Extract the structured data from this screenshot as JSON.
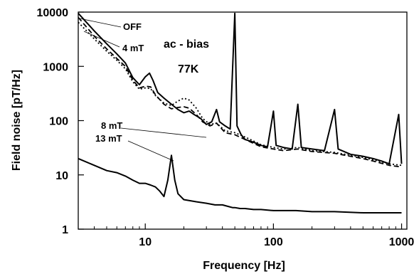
{
  "chart_data": {
    "type": "line",
    "xlabel": "Frequency [Hz]",
    "ylabel": "Field noise [pT/Hz]",
    "x_scale": "log",
    "y_scale": "log",
    "xlim": [
      3,
      1100
    ],
    "ylim": [
      1,
      10000
    ],
    "x_ticks": [
      10,
      100,
      1000
    ],
    "x_tick_labels": [
      "10",
      "100",
      "1000"
    ],
    "y_ticks": [
      1,
      10,
      100,
      1000,
      10000
    ],
    "y_tick_labels": [
      "1",
      "10",
      "100",
      "1000",
      "10000"
    ],
    "grid": false,
    "annotations": {
      "bias": "ac - bias",
      "temperature": "77K"
    },
    "series": [
      {
        "name": "OFF",
        "style": "solid",
        "points": [
          [
            3,
            9500
          ],
          [
            4,
            4500
          ],
          [
            5,
            2600
          ],
          [
            6,
            1700
          ],
          [
            7,
            1150
          ],
          [
            8,
            620
          ],
          [
            9,
            460
          ],
          [
            10,
            640
          ],
          [
            10.8,
            750
          ],
          [
            11.5,
            550
          ],
          [
            12.5,
            330
          ],
          [
            14,
            260
          ],
          [
            16,
            200
          ],
          [
            18,
            160
          ],
          [
            20,
            140
          ],
          [
            22,
            150
          ],
          [
            24,
            130
          ],
          [
            27,
            110
          ],
          [
            30,
            85
          ],
          [
            33,
            95
          ],
          [
            36,
            160
          ],
          [
            38,
            95
          ],
          [
            42,
            80
          ],
          [
            46,
            70
          ],
          [
            50,
            9500
          ],
          [
            52,
            80
          ],
          [
            56,
            55
          ],
          [
            60,
            45
          ],
          [
            70,
            40
          ],
          [
            80,
            35
          ],
          [
            90,
            33
          ],
          [
            100,
            150
          ],
          [
            105,
            35
          ],
          [
            120,
            32
          ],
          [
            140,
            30
          ],
          [
            155,
            200
          ],
          [
            165,
            32
          ],
          [
            200,
            30
          ],
          [
            250,
            28
          ],
          [
            300,
            160
          ],
          [
            320,
            30
          ],
          [
            400,
            24
          ],
          [
            500,
            22
          ],
          [
            600,
            20
          ],
          [
            700,
            18
          ],
          [
            800,
            16
          ],
          [
            950,
            130
          ],
          [
            1000,
            16
          ]
        ]
      },
      {
        "name": "4 mT",
        "style": "dashed",
        "points": [
          [
            3,
            8000
          ],
          [
            4,
            3600
          ],
          [
            5,
            2100
          ],
          [
            6,
            1400
          ],
          [
            7,
            1000
          ],
          [
            8,
            560
          ],
          [
            9,
            400
          ],
          [
            10,
            430
          ],
          [
            11,
            420
          ],
          [
            12,
            300
          ],
          [
            14,
            200
          ],
          [
            16,
            165
          ],
          [
            18,
            175
          ],
          [
            20,
            180
          ],
          [
            22,
            170
          ],
          [
            25,
            130
          ],
          [
            28,
            95
          ],
          [
            32,
            80
          ],
          [
            36,
            90
          ],
          [
            42,
            60
          ],
          [
            50,
            55
          ],
          [
            60,
            45
          ],
          [
            70,
            38
          ],
          [
            80,
            33
          ],
          [
            100,
            30
          ],
          [
            120,
            28
          ],
          [
            155,
            30
          ],
          [
            200,
            27
          ],
          [
            300,
            25
          ],
          [
            400,
            22
          ],
          [
            500,
            20
          ],
          [
            600,
            18
          ],
          [
            800,
            15
          ],
          [
            1000,
            14
          ]
        ]
      },
      {
        "name": "8 mT",
        "style": "dotted",
        "points": [
          [
            3,
            6500
          ],
          [
            4,
            3200
          ],
          [
            5,
            1900
          ],
          [
            6,
            1300
          ],
          [
            7,
            900
          ],
          [
            8,
            520
          ],
          [
            9,
            380
          ],
          [
            10,
            400
          ],
          [
            11,
            390
          ],
          [
            12,
            290
          ],
          [
            14,
            210
          ],
          [
            16,
            190
          ],
          [
            18,
            230
          ],
          [
            20,
            260
          ],
          [
            22,
            240
          ],
          [
            25,
            170
          ],
          [
            28,
            110
          ],
          [
            32,
            85
          ],
          [
            36,
            90
          ],
          [
            42,
            65
          ],
          [
            50,
            60
          ],
          [
            60,
            50
          ],
          [
            70,
            42
          ],
          [
            80,
            36
          ],
          [
            100,
            32
          ],
          [
            120,
            30
          ],
          [
            155,
            32
          ],
          [
            200,
            28
          ],
          [
            300,
            26
          ],
          [
            400,
            23
          ],
          [
            500,
            21
          ],
          [
            600,
            19
          ],
          [
            800,
            16
          ],
          [
            1000,
            15
          ]
        ]
      },
      {
        "name": "13 mT",
        "style": "solid",
        "points": [
          [
            3,
            20
          ],
          [
            4,
            15
          ],
          [
            5,
            12
          ],
          [
            6,
            11
          ],
          [
            7,
            9.5
          ],
          [
            8,
            8
          ],
          [
            9,
            7
          ],
          [
            10,
            7
          ],
          [
            11,
            6.5
          ],
          [
            12,
            6
          ],
          [
            13,
            5
          ],
          [
            14,
            4
          ],
          [
            15,
            8
          ],
          [
            16,
            23
          ],
          [
            17,
            8
          ],
          [
            18,
            4.5
          ],
          [
            20,
            3.5
          ],
          [
            25,
            3.2
          ],
          [
            30,
            3
          ],
          [
            35,
            2.8
          ],
          [
            40,
            2.8
          ],
          [
            45,
            2.6
          ],
          [
            48,
            2.5
          ],
          [
            50,
            2.5
          ],
          [
            55,
            2.4
          ],
          [
            60,
            2.4
          ],
          [
            70,
            2.3
          ],
          [
            80,
            2.3
          ],
          [
            100,
            2.2
          ],
          [
            150,
            2.2
          ],
          [
            200,
            2.1
          ],
          [
            300,
            2.1
          ],
          [
            500,
            2
          ],
          [
            700,
            2
          ],
          [
            1000,
            2
          ]
        ]
      }
    ]
  }
}
